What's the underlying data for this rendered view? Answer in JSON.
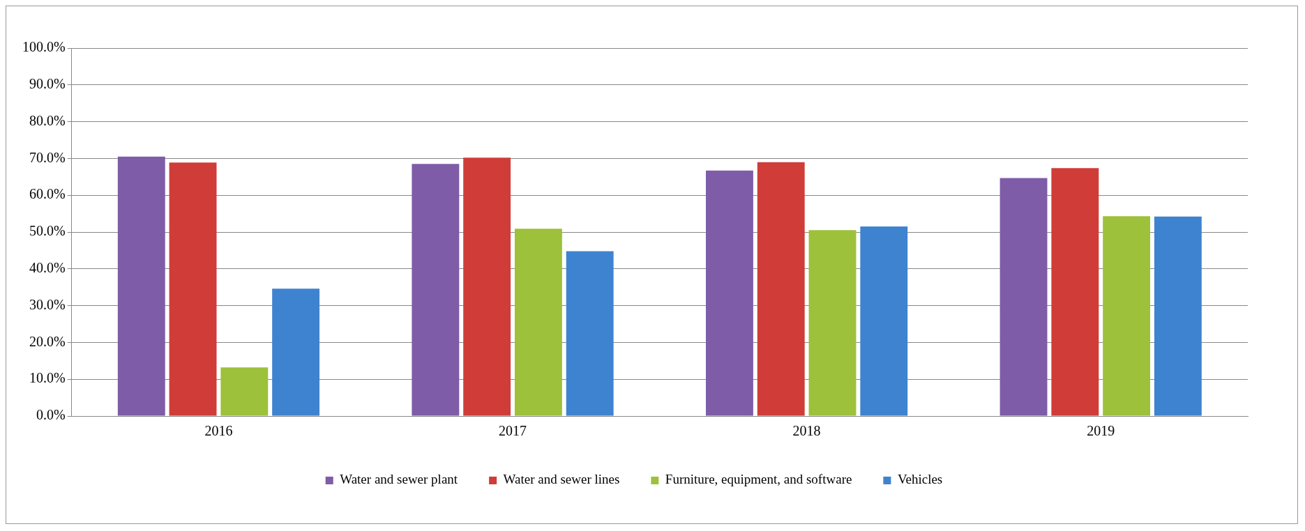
{
  "chart_data": {
    "type": "bar",
    "categories": [
      "2016",
      "2017",
      "2018",
      "2019"
    ],
    "series": [
      {
        "name": "Water and sewer plant",
        "color": "#7e5ca8",
        "values": [
          70.5,
          68.5,
          66.7,
          64.7
        ]
      },
      {
        "name": "Water and sewer lines",
        "color": "#d03c38",
        "values": [
          68.9,
          70.2,
          69.0,
          67.4
        ]
      },
      {
        "name": "Furniture, equipment, and software",
        "color": "#9dc13a",
        "values": [
          13.2,
          50.9,
          50.5,
          54.3
        ]
      },
      {
        "name": "Vehicles",
        "color": "#3e83cf",
        "values": [
          34.6,
          44.8,
          51.5,
          54.2
        ]
      }
    ],
    "ylim": [
      0,
      100
    ],
    "yticks": [
      {
        "value": 0,
        "label": "0.0%"
      },
      {
        "value": 10,
        "label": "10.0%"
      },
      {
        "value": 20,
        "label": "20.0%"
      },
      {
        "value": 30,
        "label": "30.0%"
      },
      {
        "value": 40,
        "label": "40.0%"
      },
      {
        "value": 50,
        "label": "50.0%"
      },
      {
        "value": 60,
        "label": "60.0%"
      },
      {
        "value": 70,
        "label": "70.0%"
      },
      {
        "value": 80,
        "label": "80.0%"
      },
      {
        "value": 90,
        "label": "90.0%"
      },
      {
        "value": 100,
        "label": "100.0%"
      }
    ],
    "grid": "y",
    "legend": "bottom"
  }
}
